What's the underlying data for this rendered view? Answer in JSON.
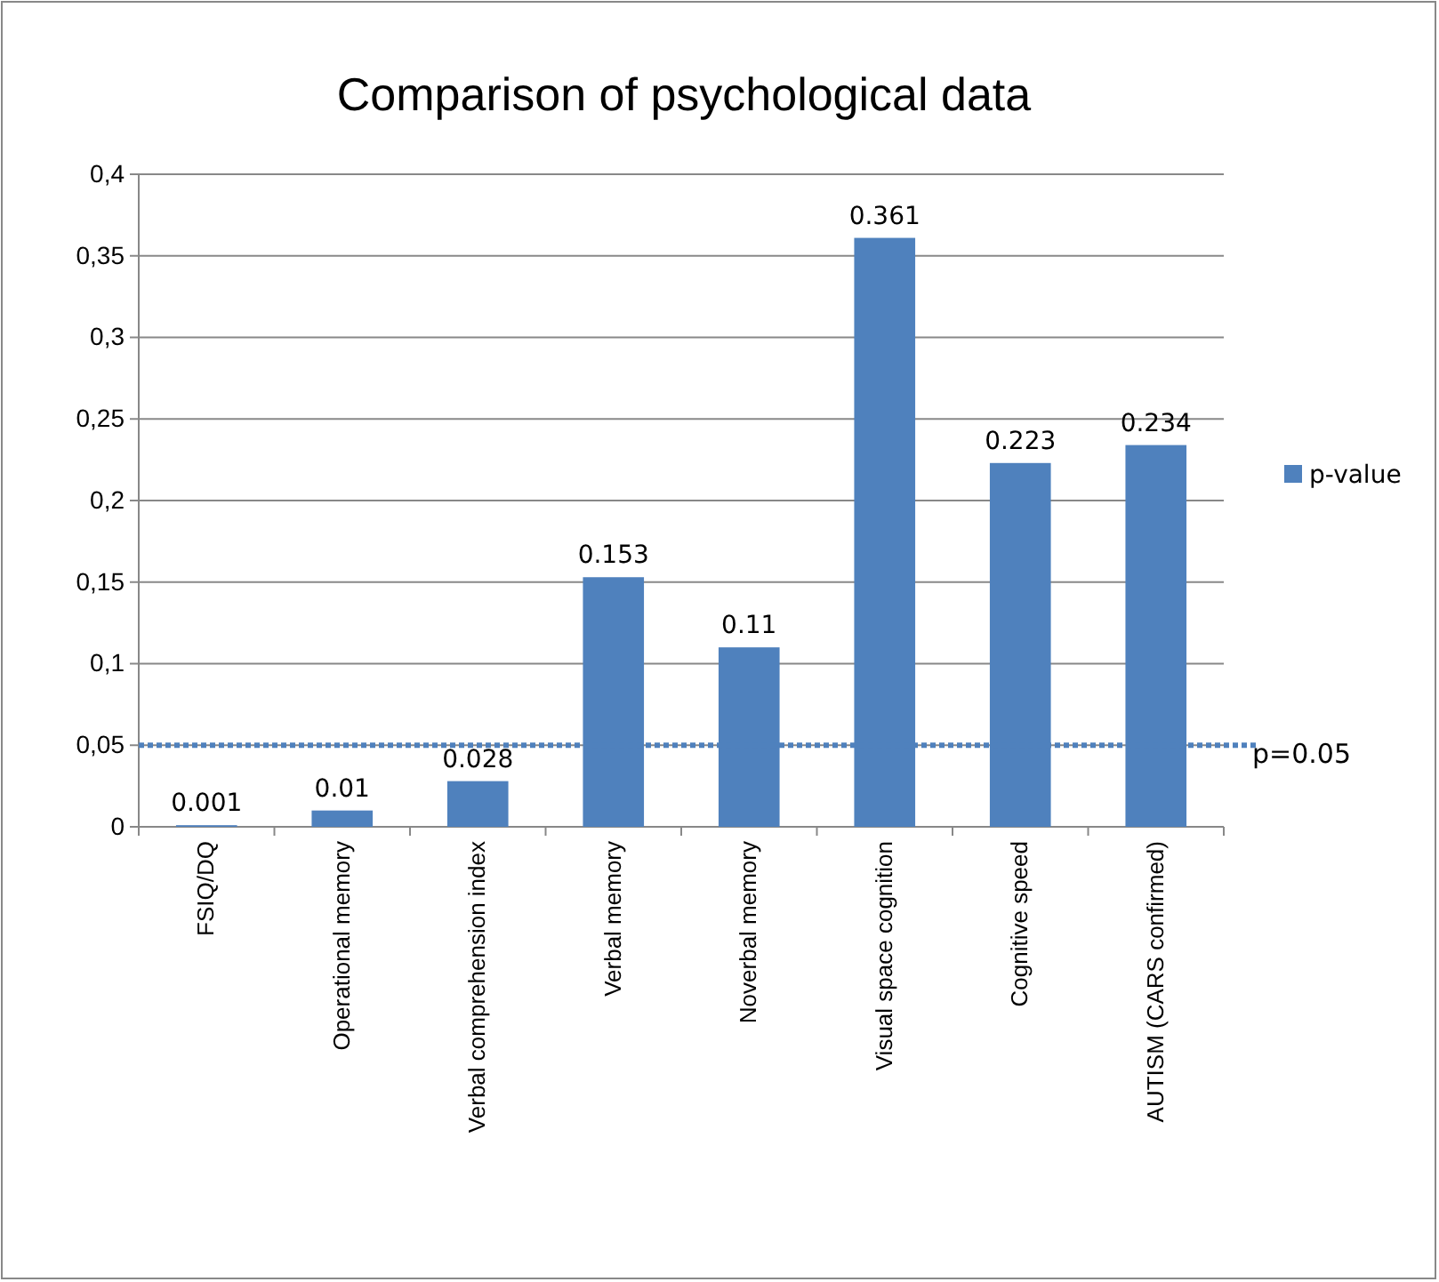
{
  "chart_data": {
    "type": "bar",
    "title": "Comparison of psychological data",
    "categories": [
      "FSIQ/DQ",
      "Operational memory",
      "Verbal comprehension index",
      "Verbal memory",
      "Noverbal memory",
      "Visual space cognition",
      "Cognitive speed",
      "AUTISM (CARS confirmed)"
    ],
    "series": [
      {
        "name": "p-value",
        "color": "#4f81bd",
        "values": [
          0.001,
          0.01,
          0.028,
          0.153,
          0.11,
          0.361,
          0.223,
          0.234
        ]
      }
    ],
    "ylim": [
      0,
      0.4
    ],
    "yticks": [
      0,
      {
        "value": 0.05,
        "label": "0,05"
      },
      {
        "value": 0.1,
        "label": "0,1"
      },
      {
        "value": 0.15,
        "label": "0,15"
      },
      {
        "value": 0.2,
        "label": "0,2"
      },
      {
        "value": 0.25,
        "label": "0,25"
      },
      {
        "value": 0.3,
        "label": "0,3"
      },
      {
        "value": 0.35,
        "label": "0,35"
      },
      {
        "value": 0.4,
        "label": "0,4"
      }
    ],
    "grid": "y",
    "legend": "right",
    "data_labels": true,
    "ref_lines": [
      {
        "axis": "y",
        "value": 0.05,
        "label": "p=0.05",
        "color": "#4f81bd",
        "line_style": "dotted"
      }
    ]
  }
}
